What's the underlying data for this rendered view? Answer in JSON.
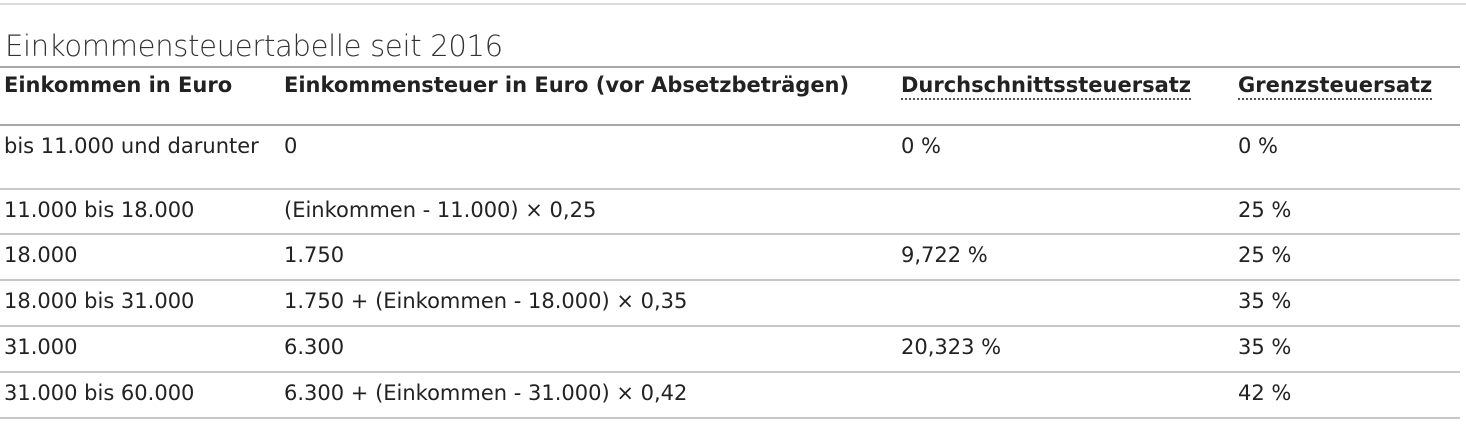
{
  "title": "Einkommensteuertabelle seit 2016",
  "table": {
    "headers": [
      "Einkommen in Euro",
      "Einkommensteuer in Euro (vor Absetzbeträgen)",
      "Durchschnittssteuersatz",
      "Grenzsteuersatz"
    ],
    "rows": [
      [
        "bis 11.000 und darunter",
        "0",
        "0 %",
        "0 %"
      ],
      [
        "11.000 bis 18.000",
        "(Einkommen - 11.000) × 0,25",
        "",
        "25 %"
      ],
      [
        "18.000",
        "1.750",
        "9,722 %",
        "25 %"
      ],
      [
        "18.000 bis 31.000",
        "1.750 + (Einkommen - 18.000) × 0,35",
        "",
        "35 %"
      ],
      [
        "31.000",
        "6.300",
        "20,323 %",
        "35 %"
      ],
      [
        "31.000 bis 60.000",
        "6.300 + (Einkommen - 31.000) × 0,42",
        "",
        "42 %"
      ]
    ]
  }
}
